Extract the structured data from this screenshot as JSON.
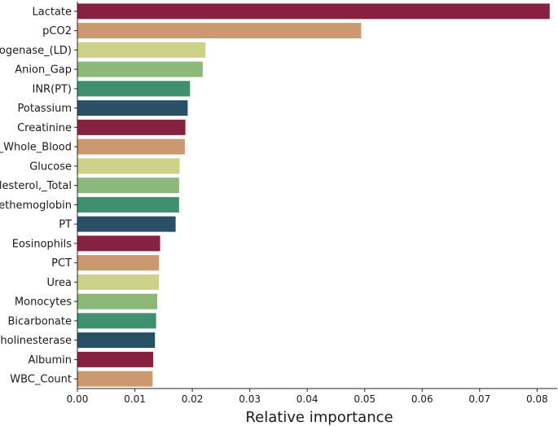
{
  "chart_data": {
    "type": "bar",
    "orientation": "horizontal",
    "title": "",
    "xlabel": "Relative importance",
    "ylabel": "",
    "xlim": [
      0,
      0.0835
    ],
    "xticks": [
      "0.00",
      "0.01",
      "0.02",
      "0.03",
      "0.04",
      "0.05",
      "0.06",
      "0.07",
      "0.08"
    ],
    "grid": false,
    "categories": [
      "Lactate",
      "pCO2",
      "rogenase_(LD)",
      "Anion_Gap",
      "INR(PT)",
      "Potassium",
      "Creatinine",
      "_Whole_Blood",
      "Glucose",
      "olesterol,_Total",
      "Methemoglobin",
      "PT",
      "Eosinophils",
      "PCT",
      "Urea",
      "Monocytes",
      "Bicarbonate",
      "Cholinesterase",
      "Albumin",
      "WBC_Count"
    ],
    "values": [
      0.0822,
      0.0494,
      0.0223,
      0.0218,
      0.0196,
      0.0192,
      0.0188,
      0.0187,
      0.0178,
      0.0177,
      0.0177,
      0.0171,
      0.0144,
      0.0142,
      0.0142,
      0.0139,
      0.0137,
      0.0135,
      0.0132,
      0.0131
    ],
    "bar_colors": [
      "#86223f",
      "#cc9870",
      "#ced188",
      "#8cb87a",
      "#3f906f",
      "#2a5066"
    ]
  }
}
